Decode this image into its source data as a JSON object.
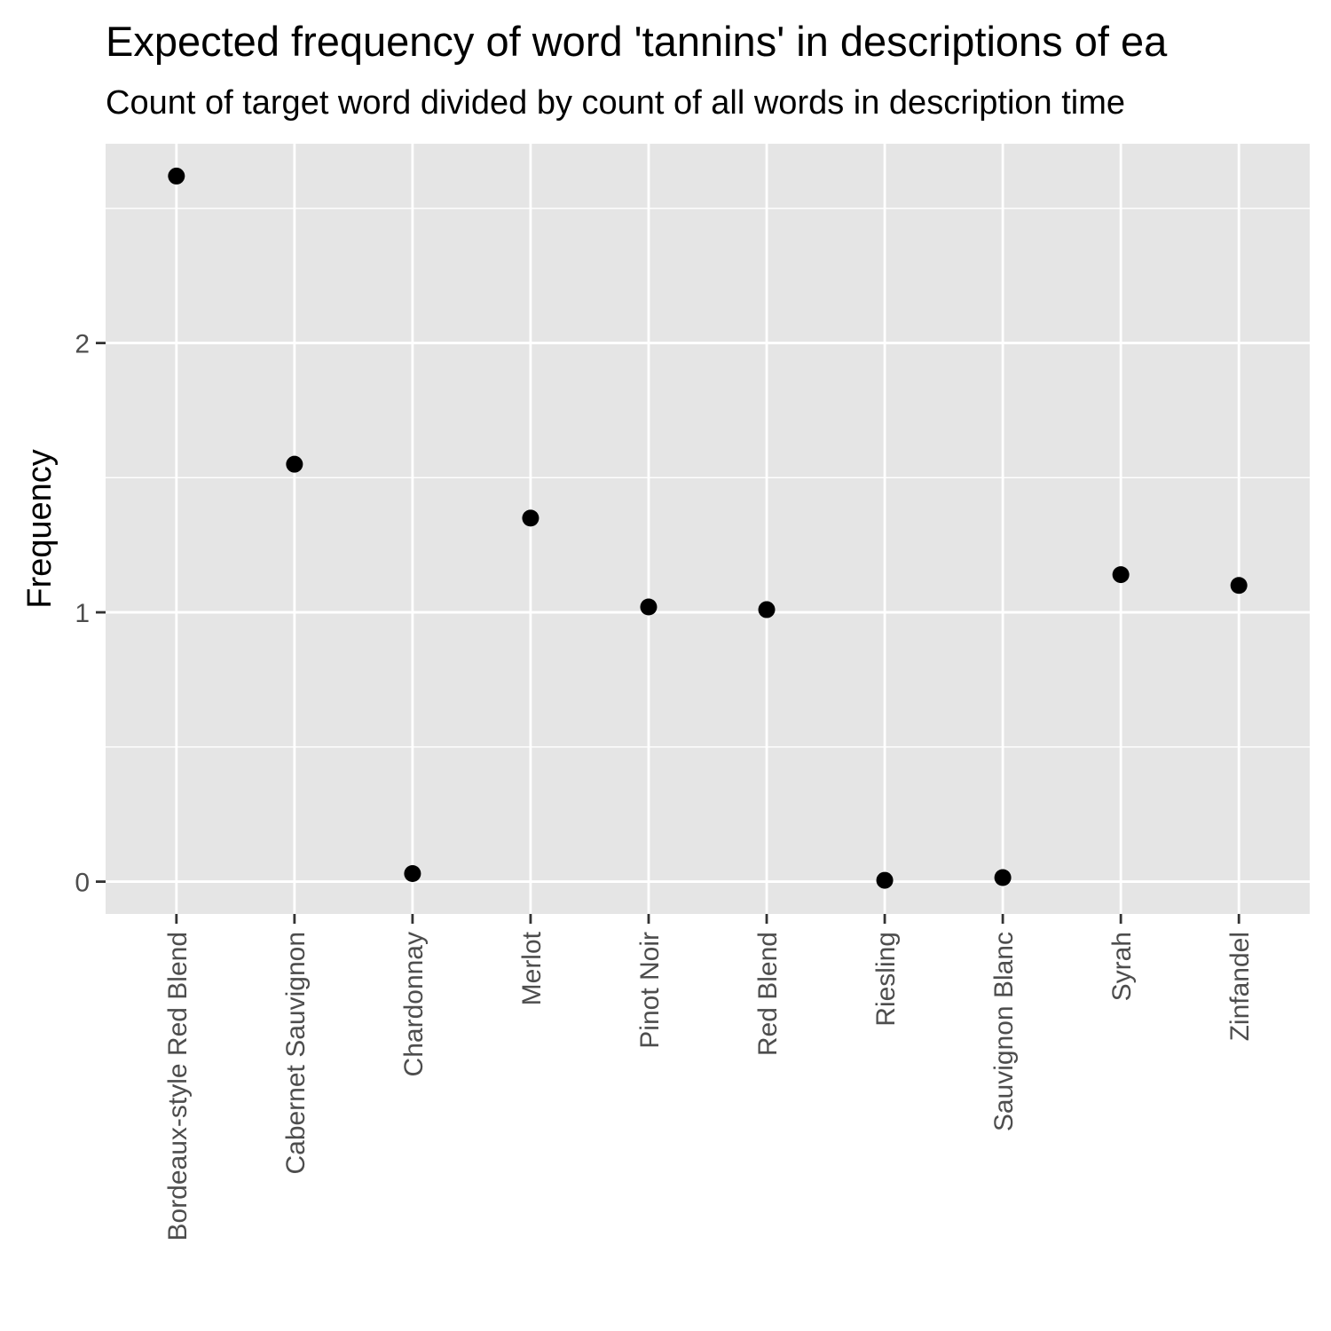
{
  "chart_data": {
    "type": "scatter",
    "title": "Expected frequency of word 'tannins' in descriptions of ea",
    "subtitle": "Count of target word divided by count of all words in description time",
    "xlabel": "",
    "ylabel": "Frequency",
    "categories": [
      "Bordeaux-style Red Blend",
      "Cabernet Sauvignon",
      "Chardonnay",
      "Merlot",
      "Pinot Noir",
      "Red Blend",
      "Riesling",
      "Sauvignon Blanc",
      "Syrah",
      "Zinfandel"
    ],
    "values": [
      2.62,
      1.55,
      0.03,
      1.35,
      1.02,
      1.01,
      0.005,
      0.015,
      1.14,
      1.1
    ],
    "ylim": [
      -0.12,
      2.74
    ],
    "yticks": [
      0,
      1,
      2
    ],
    "grid": true,
    "legend": "none",
    "colors": {
      "panel": "#e5e5e5",
      "grid": "#ffffff",
      "point": "#000000",
      "tick": "#4d4d4d"
    }
  }
}
